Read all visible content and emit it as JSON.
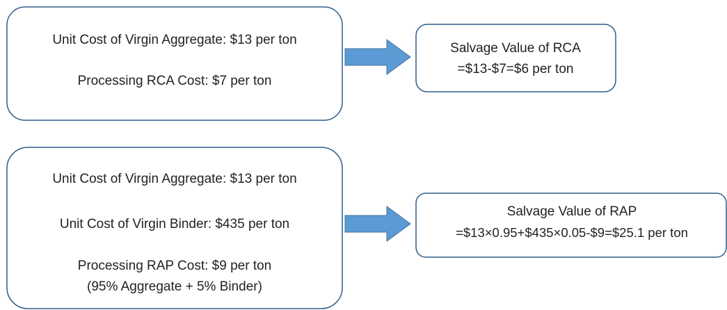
{
  "nodes": [
    {
      "lines": [
        "Unit Cost of Virgin Aggregate: $13 per ton",
        "Processing RCA Cost: $7 per ton"
      ]
    },
    {
      "lines": [
        "Salvage Value of RCA",
        "=$13-$7=$6 per ton"
      ]
    },
    {
      "lines": [
        "Unit Cost of Virgin Aggregate: $13 per ton",
        "Unit Cost of Virgin Binder: $435 per ton",
        "Processing RAP Cost: $9 per ton",
        "(95% Aggregate + 5% Binder)"
      ]
    },
    {
      "lines": [
        "Salvage Value of RAP",
        "=$13×0.95+$435×0.05-$9=$25.1 per ton"
      ]
    }
  ]
}
